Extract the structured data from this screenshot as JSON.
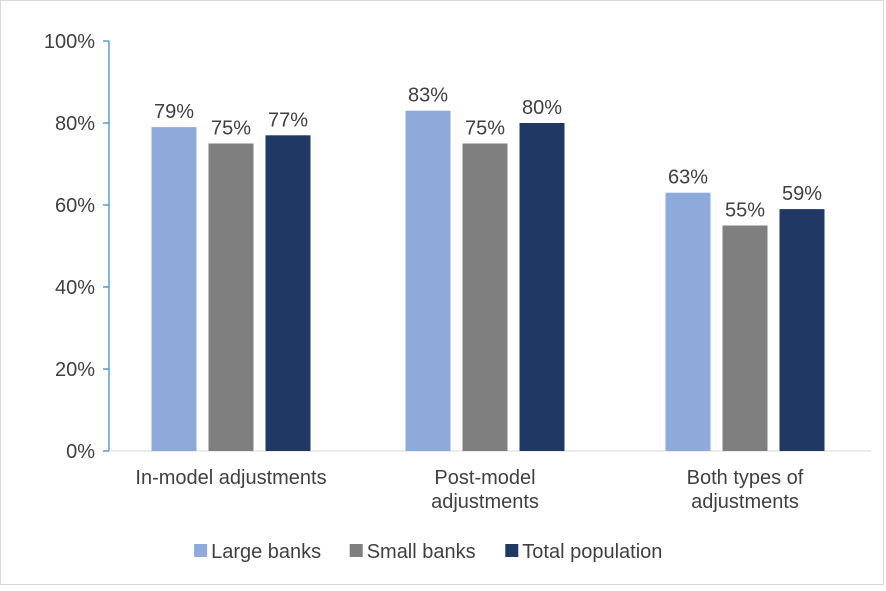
{
  "chart_data": {
    "type": "bar",
    "title": "",
    "xlabel": "",
    "ylabel": "",
    "categories": [
      [
        "In-model adjustments"
      ],
      [
        "Post-model",
        "adjustments"
      ],
      [
        "Both types of",
        "adjustments"
      ]
    ],
    "series": [
      {
        "name": "Large banks",
        "color": "#8EAADB",
        "values": [
          79,
          83,
          63
        ]
      },
      {
        "name": "Small banks",
        "color": "#7F7F7F",
        "values": [
          75,
          75,
          55
        ]
      },
      {
        "name": "Total population",
        "color": "#1F3864",
        "values": [
          77,
          80,
          59
        ]
      }
    ],
    "ylim": [
      0,
      100
    ],
    "yticks": [
      0,
      20,
      40,
      60,
      80,
      100
    ],
    "value_suffix": "%",
    "grid": false,
    "legend": "bottom",
    "axis_color": "#5B9BD5"
  }
}
